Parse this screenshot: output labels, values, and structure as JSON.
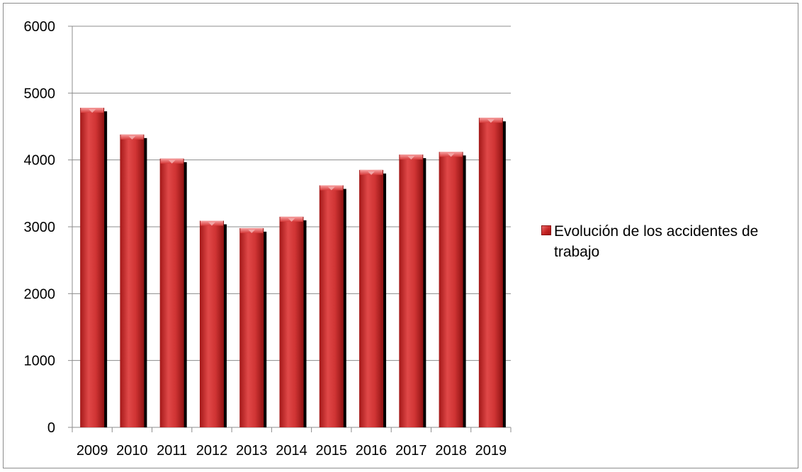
{
  "chart_data": {
    "type": "bar",
    "title": "",
    "xlabel": "",
    "ylabel": "",
    "categories": [
      "2009",
      "2010",
      "2011",
      "2012",
      "2013",
      "2014",
      "2015",
      "2016",
      "2017",
      "2018",
      "2019"
    ],
    "series": [
      {
        "name": "Evolución de los accidentes de trabajo",
        "values": [
          4780,
          4380,
          4020,
          3090,
          2980,
          3150,
          3620,
          3850,
          4080,
          4120,
          4630
        ],
        "color": "#c62828"
      }
    ],
    "ylim": [
      0,
      6000
    ],
    "yticks": [
      0,
      1000,
      2000,
      3000,
      4000,
      5000,
      6000
    ],
    "grid": true,
    "legend_position": "right"
  }
}
